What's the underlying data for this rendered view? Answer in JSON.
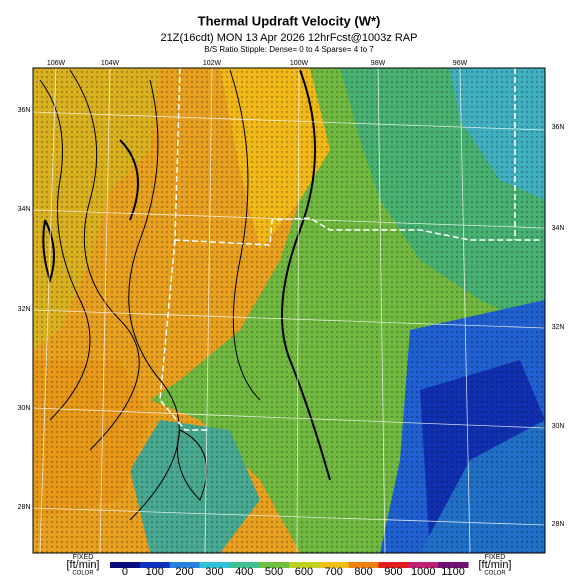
{
  "header": {
    "title": "Thermal Updraft Velocity (W*)",
    "subtitle": "21Z(16cdt) MON 13 Apr 2026 12hrFcst@1003z RAP",
    "note": "B/S Ratio Stipple: Dense= 0 to 4 Sparse= 4 to 7"
  },
  "map": {
    "top_labels": [
      "106W",
      "104W",
      "102W",
      "100W",
      "98W",
      "96W"
    ],
    "left_labels": [
      "36N",
      "34N",
      "32N",
      "30N",
      "28N"
    ],
    "right_labels": [
      "36N",
      "34N",
      "32N",
      "30N",
      "28N"
    ]
  },
  "legend": {
    "left_caption": [
      "FIXED",
      "[ft/min]",
      "COLOR"
    ],
    "right_caption": [
      "FIXED",
      "[ft/min]",
      "COLOR"
    ],
    "ticks": [
      0,
      100,
      200,
      300,
      400,
      500,
      600,
      700,
      800,
      900,
      1000,
      1100
    ]
  }
}
